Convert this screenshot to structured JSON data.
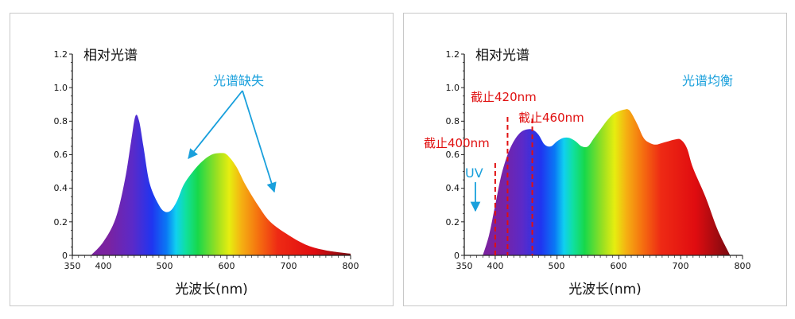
{
  "colors": {
    "annotation_blue": "#1aa0dc",
    "cutoff_red": "#e01010",
    "axis": "#222222"
  },
  "chart_data": [
    {
      "type": "area",
      "title": "相对光谱",
      "xlabel": "光波长(nm)",
      "ylabel": "",
      "xlim": [
        350,
        800
      ],
      "ylim": [
        0,
        1.2
      ],
      "x_ticks": [
        "350",
        "400",
        "500",
        "600",
        "700",
        "800"
      ],
      "y_ticks": [
        "0",
        "0.2",
        "0.4",
        "0.6",
        "0.8",
        "1.0",
        "1.2"
      ],
      "fill": "visible-spectrum gradient",
      "x": [
        380,
        400,
        420,
        435,
        445,
        452,
        458,
        465,
        475,
        490,
        500,
        510,
        520,
        530,
        545,
        560,
        575,
        590,
        600,
        615,
        630,
        650,
        670,
        700,
        730,
        760,
        800
      ],
      "y": [
        0.0,
        0.08,
        0.22,
        0.45,
        0.68,
        0.83,
        0.8,
        0.65,
        0.43,
        0.3,
        0.26,
        0.27,
        0.33,
        0.42,
        0.5,
        0.56,
        0.6,
        0.61,
        0.6,
        0.53,
        0.42,
        0.3,
        0.2,
        0.12,
        0.06,
        0.03,
        0.01
      ],
      "annotations": [
        {
          "text": "光谱缺失",
          "color": "#1aa0dc",
          "kind": "arrows"
        }
      ]
    },
    {
      "type": "area",
      "title": "相对光谱",
      "xlabel": "光波长(nm)",
      "ylabel": "",
      "xlim": [
        350,
        800
      ],
      "ylim": [
        0,
        1.2
      ],
      "x_ticks": [
        "350",
        "400",
        "500",
        "600",
        "700",
        "800"
      ],
      "y_ticks": [
        "0",
        "0.2",
        "0.4",
        "0.6",
        "0.8",
        "1.0",
        "1.2"
      ],
      "fill": "visible-spectrum gradient",
      "x": [
        380,
        390,
        400,
        410,
        420,
        430,
        440,
        450,
        460,
        470,
        480,
        490,
        500,
        510,
        520,
        530,
        540,
        550,
        560,
        570,
        580,
        590,
        600,
        610,
        615,
        620,
        630,
        640,
        650,
        660,
        670,
        680,
        690,
        700,
        710,
        720,
        740,
        760,
        780
      ],
      "y": [
        0.0,
        0.12,
        0.3,
        0.48,
        0.6,
        0.68,
        0.73,
        0.75,
        0.75,
        0.72,
        0.66,
        0.65,
        0.68,
        0.7,
        0.7,
        0.68,
        0.65,
        0.65,
        0.7,
        0.75,
        0.8,
        0.84,
        0.86,
        0.87,
        0.87,
        0.85,
        0.78,
        0.7,
        0.67,
        0.66,
        0.67,
        0.68,
        0.69,
        0.69,
        0.64,
        0.52,
        0.35,
        0.15,
        0.0
      ],
      "cutoffs": [
        {
          "x": 400,
          "label": "截止400nm"
        },
        {
          "x": 420,
          "label": "截止420nm"
        },
        {
          "x": 460,
          "label": "截止460nm"
        }
      ],
      "annotations": [
        {
          "text": "光谱均衡",
          "color": "#1aa0dc"
        },
        {
          "text": "UV",
          "color": "#1aa0dc",
          "kind": "down-arrow"
        }
      ]
    }
  ]
}
